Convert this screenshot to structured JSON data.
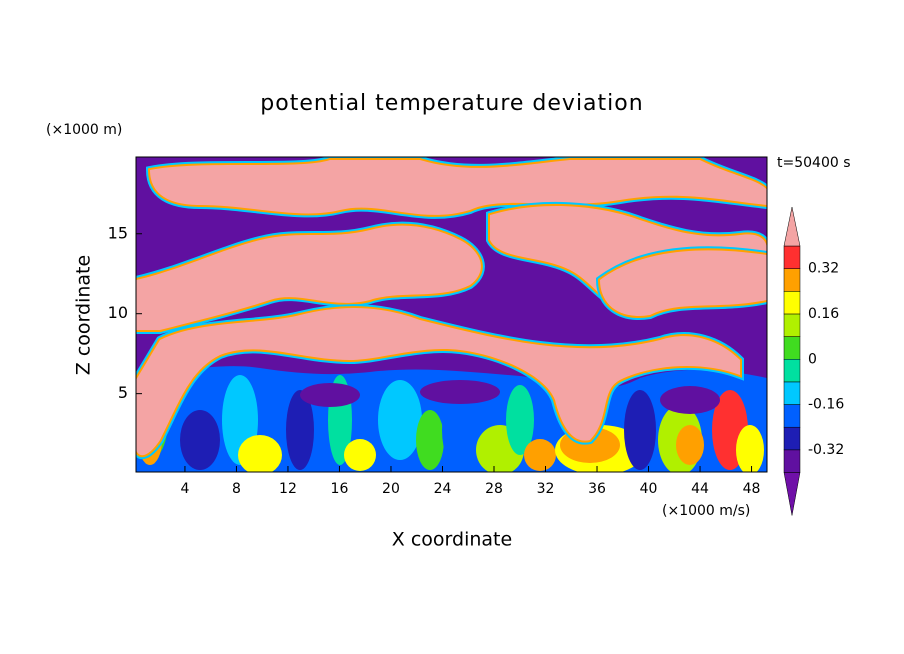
{
  "chart_data": {
    "type": "contour",
    "title": "potential temperature deviation",
    "x_label": "X coordinate",
    "y_label": "Z coordinate",
    "x_unit": "(×1000 m/s)",
    "y_unit": "(×1000 m)",
    "time_label": "t=50400 s",
    "xlim": [
      0.2,
      49.2
    ],
    "xticks": [
      4,
      8,
      12,
      16,
      20,
      24,
      28,
      32,
      36,
      40,
      44,
      48
    ],
    "ylim": [
      0.1,
      19.8
    ],
    "yticks": [
      5,
      10,
      15
    ],
    "colorbar": {
      "levels": [
        -0.4,
        -0.32,
        -0.24,
        -0.16,
        -0.08,
        0,
        0.08,
        0.16,
        0.24,
        0.32,
        0.4
      ],
      "colors": [
        "#7010a8",
        "#6010a0",
        "#1e1eb4",
        "#0060ff",
        "#00c8ff",
        "#00e0a0",
        "#40dc20",
        "#b0f000",
        "#ffff00",
        "#ffa000",
        "#ff3030",
        "#f4a4a4"
      ],
      "ticks": [
        -0.32,
        -0.16,
        0,
        0.16,
        0.32
      ],
      "extend": "both"
    }
  }
}
